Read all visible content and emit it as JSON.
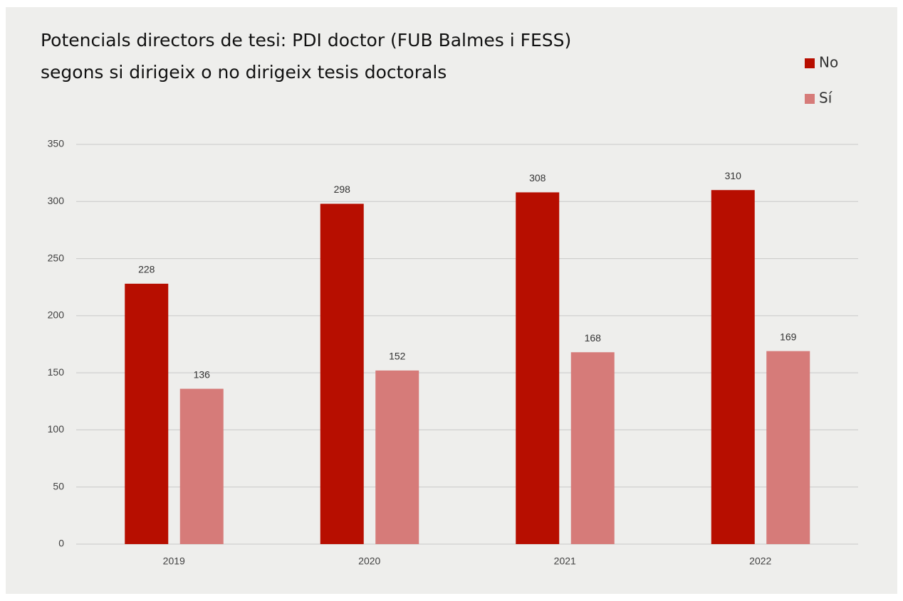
{
  "chart_data": {
    "type": "bar",
    "title": [
      "Potencials directors de tesi: PDI doctor (FUB Balmes i FESS)",
      "segons si dirigeix o no dirigeix tesis doctorals"
    ],
    "categories": [
      "2019",
      "2020",
      "2021",
      "2022"
    ],
    "series": [
      {
        "name": "No",
        "color": "#b70e00",
        "values": [
          228,
          298,
          308,
          310
        ]
      },
      {
        "name": "Sí",
        "color": "#d67b79",
        "values": [
          136,
          152,
          168,
          169
        ]
      }
    ],
    "ylim": [
      0,
      350
    ],
    "yticks": [
      0,
      50,
      100,
      150,
      200,
      250,
      300,
      350
    ],
    "grid": true,
    "legend": "top-right"
  }
}
